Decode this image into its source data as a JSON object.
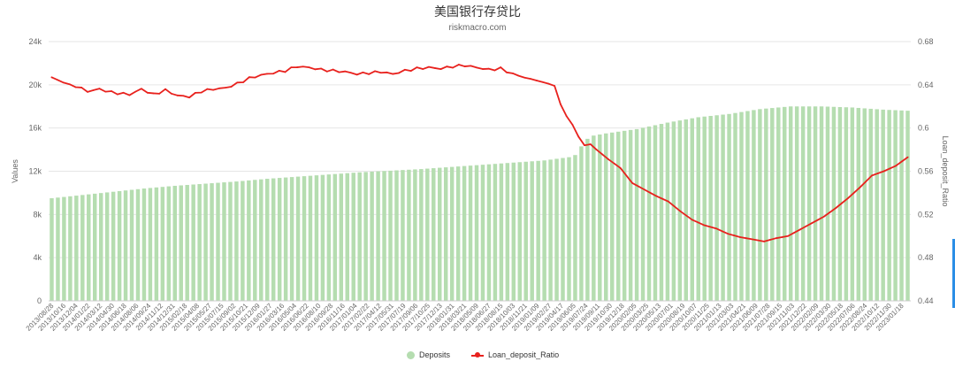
{
  "chart_data": {
    "type": "bar+line",
    "title": "美国银行存贷比",
    "subtitle": "riskmacro.com",
    "y_left": {
      "label": "Values",
      "range": [
        0,
        24000
      ],
      "ticks": [
        0,
        4000,
        8000,
        12000,
        16000,
        20000,
        24000
      ],
      "tick_labels": [
        "0",
        "4k",
        "8k",
        "12k",
        "16k",
        "20k",
        "24k"
      ]
    },
    "y_right": {
      "label": "Loan_deposit_Ratio",
      "range": [
        0.44,
        0.68
      ],
      "ticks": [
        0.44,
        0.48,
        0.52,
        0.56,
        0.6,
        0.64,
        0.68
      ],
      "tick_labels": [
        "0.44",
        "0.48",
        "0.52",
        "0.56",
        "0.6",
        "0.64",
        "0.68"
      ]
    },
    "x_tick_labels": [
      "2013/08/28",
      "2013/10/16",
      "2013/12/04",
      "2014/01/22",
      "2014/03/12",
      "2014/04/30",
      "2014/06/18",
      "2014/08/06",
      "2014/09/24",
      "2014/11/12",
      "2014/12/31",
      "2015/02/18",
      "2015/04/08",
      "2015/05/27",
      "2015/07/15",
      "2015/09/02",
      "2015/10/21",
      "2015/12/09",
      "2016/01/27",
      "2016/03/16",
      "2016/05/04",
      "2016/06/22",
      "2016/08/10",
      "2016/09/28",
      "2016/11/16",
      "2017/01/04",
      "2017/02/22",
      "2017/04/12",
      "2017/05/31",
      "2017/07/19",
      "2017/09/06",
      "2017/10/25",
      "2017/12/13",
      "2018/01/31",
      "2018/03/21",
      "2018/05/09",
      "2018/06/27",
      "2018/08/15",
      "2018/10/03",
      "2018/11/21",
      "2019/01/09",
      "2019/02/27",
      "2019/04/17",
      "2019/06/05",
      "2019/07/24",
      "2019/09/11",
      "2019/10/30",
      "2019/12/18",
      "2020/02/05",
      "2020/03/25",
      "2020/05/13",
      "2020/07/01",
      "2020/08/19",
      "2020/10/07",
      "2020/11/25",
      "2021/01/13",
      "2021/03/03",
      "2021/04/21",
      "2021/06/09",
      "2021/07/28",
      "2021/09/15",
      "2021/11/03",
      "2021/12/22",
      "2022/02/09",
      "2022/03/30",
      "2022/05/18",
      "2022/07/06",
      "2022/08/24",
      "2022/10/12",
      "2022/11/30",
      "2023/01/18"
    ],
    "series": [
      {
        "name": "Deposits",
        "type": "bar",
        "color": "#b5ddb0",
        "anchors": [
          [
            0,
            9500
          ],
          [
            5,
            9800
          ],
          [
            10,
            10100
          ],
          [
            15,
            10400
          ],
          [
            20,
            10650
          ],
          [
            25,
            10850
          ],
          [
            30,
            11050
          ],
          [
            35,
            11300
          ],
          [
            40,
            11500
          ],
          [
            45,
            11700
          ],
          [
            50,
            11900
          ],
          [
            55,
            12050
          ],
          [
            60,
            12200
          ],
          [
            65,
            12400
          ],
          [
            70,
            12600
          ],
          [
            75,
            12800
          ],
          [
            80,
            13000
          ],
          [
            84,
            13300
          ],
          [
            85,
            13500
          ],
          [
            86,
            14300
          ],
          [
            87,
            15000
          ],
          [
            88,
            15300
          ],
          [
            90,
            15500
          ],
          [
            95,
            15900
          ],
          [
            100,
            16500
          ],
          [
            105,
            17000
          ],
          [
            110,
            17300
          ],
          [
            115,
            17750
          ],
          [
            120,
            18000
          ],
          [
            125,
            18000
          ],
          [
            130,
            17900
          ],
          [
            135,
            17700
          ],
          [
            139,
            17600
          ]
        ],
        "count": 140
      },
      {
        "name": "Loan_deposit_Ratio",
        "type": "line",
        "color": "#e8211d",
        "anchors": [
          [
            0,
            0.647
          ],
          [
            2,
            0.642
          ],
          [
            4,
            0.639
          ],
          [
            6,
            0.634
          ],
          [
            8,
            0.636
          ],
          [
            10,
            0.633
          ],
          [
            13,
            0.631
          ],
          [
            15,
            0.636
          ],
          [
            17,
            0.631
          ],
          [
            19,
            0.635
          ],
          [
            21,
            0.63
          ],
          [
            23,
            0.629
          ],
          [
            25,
            0.634
          ],
          [
            27,
            0.636
          ],
          [
            29,
            0.637
          ],
          [
            31,
            0.641
          ],
          [
            33,
            0.646
          ],
          [
            35,
            0.649
          ],
          [
            37,
            0.651
          ],
          [
            39,
            0.653
          ],
          [
            41,
            0.657
          ],
          [
            43,
            0.656
          ],
          [
            45,
            0.654
          ],
          [
            47,
            0.653
          ],
          [
            49,
            0.652
          ],
          [
            51,
            0.65
          ],
          [
            53,
            0.651
          ],
          [
            55,
            0.652
          ],
          [
            57,
            0.65
          ],
          [
            59,
            0.653
          ],
          [
            61,
            0.655
          ],
          [
            63,
            0.656
          ],
          [
            65,
            0.655
          ],
          [
            67,
            0.657
          ],
          [
            69,
            0.658
          ],
          [
            71,
            0.656
          ],
          [
            73,
            0.654
          ],
          [
            75,
            0.655
          ],
          [
            77,
            0.65
          ],
          [
            79,
            0.647
          ],
          [
            81,
            0.644
          ],
          [
            83,
            0.641
          ],
          [
            84,
            0.639
          ],
          [
            85,
            0.622
          ],
          [
            86,
            0.611
          ],
          [
            87,
            0.603
          ],
          [
            88,
            0.592
          ],
          [
            89,
            0.584
          ],
          [
            90,
            0.585
          ],
          [
            91,
            0.58
          ],
          [
            93,
            0.571
          ],
          [
            95,
            0.563
          ],
          [
            97,
            0.549
          ],
          [
            99,
            0.543
          ],
          [
            101,
            0.537
          ],
          [
            103,
            0.532
          ],
          [
            105,
            0.523
          ],
          [
            107,
            0.515
          ],
          [
            109,
            0.51
          ],
          [
            111,
            0.507
          ],
          [
            113,
            0.502
          ],
          [
            115,
            0.499
          ],
          [
            117,
            0.497
          ],
          [
            119,
            0.495
          ],
          [
            121,
            0.498
          ],
          [
            123,
            0.5
          ],
          [
            125,
            0.506
          ],
          [
            127,
            0.512
          ],
          [
            129,
            0.518
          ],
          [
            131,
            0.526
          ],
          [
            133,
            0.535
          ],
          [
            135,
            0.545
          ],
          [
            137,
            0.556
          ],
          [
            139,
            0.56
          ],
          [
            141,
            0.565
          ],
          [
            143,
            0.573
          ]
        ],
        "count": 144
      }
    ],
    "legend": {
      "placement": "bottom-center",
      "items": [
        "Deposits",
        "Loan_deposit_Ratio"
      ]
    },
    "grid": true
  },
  "legend_labels": {
    "deposits": "Deposits",
    "ratio": "Loan_deposit_Ratio"
  },
  "colors": {
    "bar": "#b5ddb0",
    "line": "#e8211d",
    "grid": "#e6e6e6",
    "axis_text": "#666666"
  }
}
